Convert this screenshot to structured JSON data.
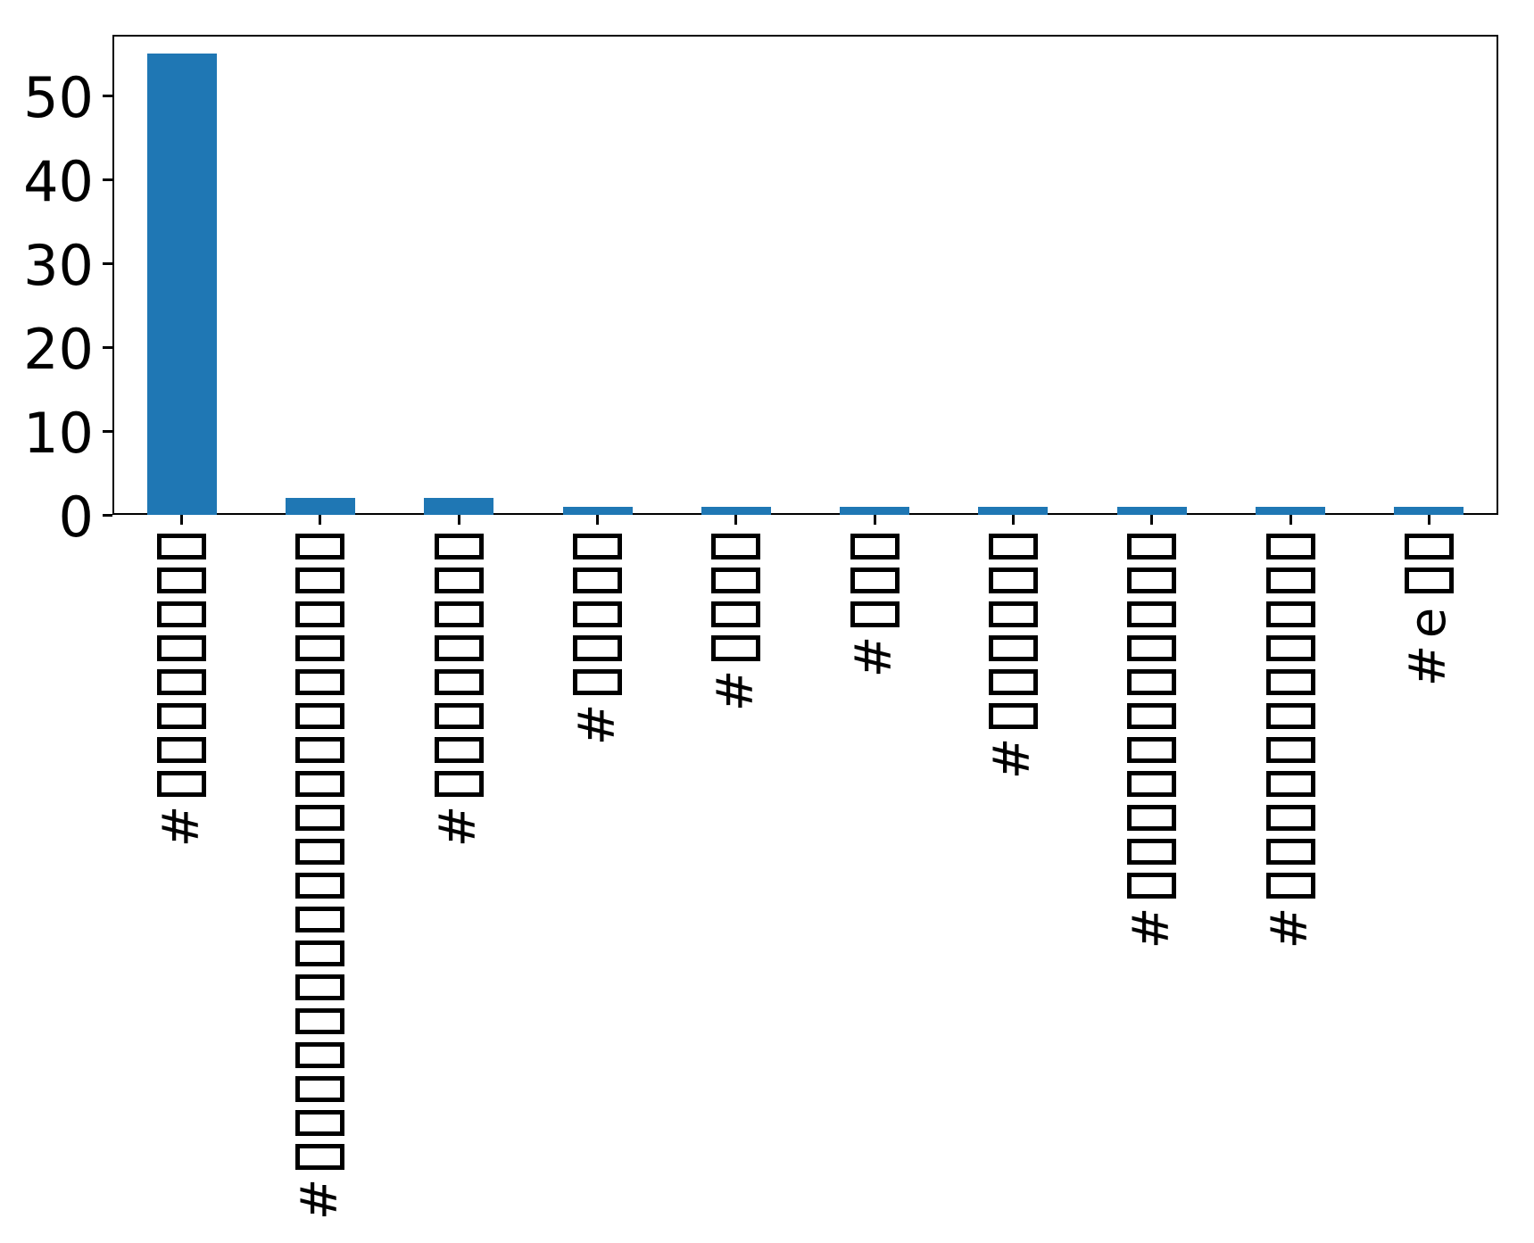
{
  "chart_data": {
    "type": "bar",
    "title": "",
    "xlabel": "",
    "ylabel": "",
    "categories": [
      "#□□□□□□□□",
      "#□□□□□□□□□□□□□□□□□□□",
      "#□□□□□□□□",
      "#□□□□□",
      "#□□□□",
      "#□□□",
      "#□□□□□□",
      "#□□□□□□□□□□□",
      "#□□□□□□□□□□□",
      "#e□□"
    ],
    "values": [
      55,
      2,
      2,
      1,
      1,
      1,
      1,
      1,
      1,
      1
    ],
    "yticks": [
      0,
      10,
      20,
      30,
      40,
      50
    ],
    "ylim": [
      0,
      57.2
    ],
    "bar_color": "#1f77b4",
    "axis_color": "#000000",
    "x_tick_rotation": 90,
    "grid": false,
    "legend_position": "none",
    "glyph_note": "x tick labels are rotated 90°; non-Latin hashtag characters are rendered as hollow missing-glyph (tofu) boxes, with the # at the bottom end of each label"
  }
}
